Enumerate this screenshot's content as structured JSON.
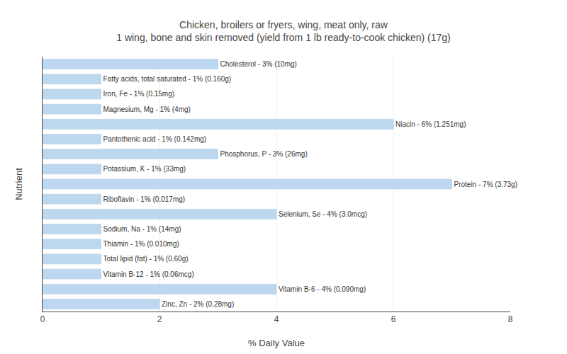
{
  "chart_data": {
    "type": "bar",
    "orientation": "horizontal",
    "title": "Chicken, broilers or fryers, wing, meat only, raw",
    "subtitle": "1 wing, bone and skin removed (yield from 1 lb ready-to-cook chicken) (17g)",
    "x_label": "% Daily Value",
    "y_label": "Nutrient",
    "categories": [
      "Cholesterol - 3% (10mg)",
      "Fatty acids, total saturated - 1% (0.160g)",
      "Iron, Fe - 1% (0.15mg)",
      "Magnesium, Mg - 1% (4mg)",
      "Niacin - 6% (1.251mg)",
      "Pantothenic acid - 1% (0.142mg)",
      "Phosphorus, P - 3% (26mg)",
      "Potassium, K - 1% (33mg)",
      "Protein - 7% (3.73g)",
      "Riboflavin - 1% (0.017mg)",
      "Selenium, Se - 4% (3.0mcg)",
      "Sodium, Na - 1% (14mg)",
      "Thiamin - 1% (0.010mg)",
      "Total lipid (fat) - 1% (0.60g)",
      "Vitamin B-12 - 1% (0.06mcg)",
      "Vitamin B-6 - 4% (0.090mg)",
      "Zinc, Zn - 2% (0.28mg)"
    ],
    "values": [
      3,
      1,
      1,
      1,
      6,
      1,
      3,
      1,
      7,
      1,
      4,
      1,
      1,
      1,
      1,
      4,
      2
    ],
    "color": "#bdd7ee",
    "xlim": [
      0,
      8
    ],
    "xticks": [
      0,
      2,
      4,
      6,
      8
    ],
    "grid": true,
    "tick_labels": "x"
  }
}
